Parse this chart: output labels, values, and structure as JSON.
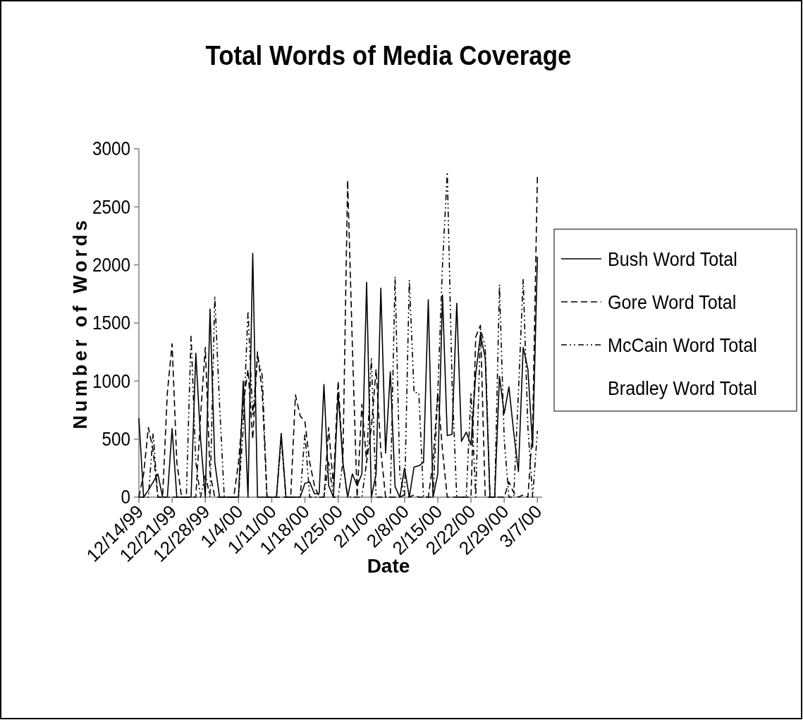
{
  "chart_data": {
    "type": "line",
    "title": "Total Words of Media Coverage",
    "xlabel": "Date",
    "ylabel": "Number of Words",
    "x": [
      "1999-12-14",
      "1999-12-15",
      "1999-12-16",
      "1999-12-17",
      "1999-12-18",
      "1999-12-19",
      "1999-12-20",
      "1999-12-21",
      "1999-12-22",
      "1999-12-23",
      "1999-12-24",
      "1999-12-25",
      "1999-12-26",
      "1999-12-27",
      "1999-12-28",
      "1999-12-29",
      "1999-12-30",
      "1999-12-31",
      "2000-01-01",
      "2000-01-02",
      "2000-01-03",
      "2000-01-04",
      "2000-01-05",
      "2000-01-06",
      "2000-01-07",
      "2000-01-08",
      "2000-01-09",
      "2000-01-10",
      "2000-01-11",
      "2000-01-12",
      "2000-01-13",
      "2000-01-14",
      "2000-01-15",
      "2000-01-16",
      "2000-01-17",
      "2000-01-18",
      "2000-01-19",
      "2000-01-20",
      "2000-01-21",
      "2000-01-22",
      "2000-01-23",
      "2000-01-24",
      "2000-01-25",
      "2000-01-26",
      "2000-01-27",
      "2000-01-28",
      "2000-01-29",
      "2000-01-30",
      "2000-01-31",
      "2000-02-01",
      "2000-02-02",
      "2000-02-03",
      "2000-02-04",
      "2000-02-05",
      "2000-02-06",
      "2000-02-07",
      "2000-02-08",
      "2000-02-09",
      "2000-02-10",
      "2000-02-11",
      "2000-02-12",
      "2000-02-13",
      "2000-02-14",
      "2000-02-15",
      "2000-02-16",
      "2000-02-17",
      "2000-02-18",
      "2000-02-19",
      "2000-02-20",
      "2000-02-21",
      "2000-02-22",
      "2000-02-23",
      "2000-02-24",
      "2000-02-25",
      "2000-02-26",
      "2000-02-27",
      "2000-02-28",
      "2000-02-29",
      "2000-03-01",
      "2000-03-02",
      "2000-03-03",
      "2000-03-04",
      "2000-03-05",
      "2000-03-06",
      "2000-03-07"
    ],
    "xlim": [
      "1999-12-14",
      "2000-03-08"
    ],
    "xticks": [
      {
        "value": "1999-12-14",
        "label": "12/14/99"
      },
      {
        "value": "1999-12-21",
        "label": "12/21/99"
      },
      {
        "value": "1999-12-28",
        "label": "12/28/99"
      },
      {
        "value": "2000-01-04",
        "label": "1/4/00"
      },
      {
        "value": "2000-01-11",
        "label": "1/11/00"
      },
      {
        "value": "2000-01-18",
        "label": "1/18/00"
      },
      {
        "value": "2000-01-25",
        "label": "1/25/00"
      },
      {
        "value": "2000-02-01",
        "label": "2/1/00"
      },
      {
        "value": "2000-02-08",
        "label": "2/8/00"
      },
      {
        "value": "2000-02-15",
        "label": "2/15/00"
      },
      {
        "value": "2000-02-22",
        "label": "2/22/00"
      },
      {
        "value": "2000-02-29",
        "label": "2/29/00"
      },
      {
        "value": "2000-03-07",
        "label": "3/7/00"
      }
    ],
    "ylim": [
      0,
      3000
    ],
    "yticks": [
      0,
      500,
      1000,
      1500,
      2000,
      2500,
      3000
    ],
    "legend": "right",
    "grid": false,
    "marker": "none",
    "series": [
      {
        "name": "Bush Word Total",
        "color": "#000000",
        "line_style": "solid",
        "values": [
          680,
          0,
          60,
          130,
          200,
          0,
          0,
          590,
          0,
          0,
          0,
          0,
          1240,
          500,
          0,
          1620,
          300,
          0,
          0,
          0,
          0,
          0,
          1000,
          0,
          2100,
          0,
          0,
          0,
          0,
          0,
          550,
          0,
          0,
          0,
          0,
          120,
          130,
          30,
          30,
          970,
          100,
          0,
          900,
          300,
          0,
          200,
          100,
          200,
          1850,
          0,
          200,
          1800,
          380,
          1080,
          90,
          0,
          250,
          0,
          260,
          270,
          300,
          1700,
          0,
          200,
          1740,
          530,
          540,
          1670,
          480,
          560,
          450,
          1060,
          1400,
          1200,
          0,
          0,
          1040,
          720,
          950,
          560,
          220,
          1290,
          1100,
          430,
          2070
        ]
      },
      {
        "name": "Gore Word Total",
        "color": "#000000",
        "line_style": "dashed",
        "values": [
          0,
          200,
          600,
          400,
          0,
          0,
          900,
          1320,
          300,
          0,
          0,
          0,
          0,
          700,
          1290,
          200,
          0,
          0,
          0,
          0,
          0,
          300,
          800,
          1100,
          500,
          1250,
          900,
          0,
          0,
          0,
          0,
          0,
          0,
          880,
          700,
          650,
          300,
          100,
          0,
          0,
          600,
          100,
          1000,
          300,
          2730,
          1300,
          0,
          800,
          300,
          600,
          1100,
          400,
          0,
          0,
          0,
          0,
          20,
          0,
          20,
          0,
          0,
          0,
          300,
          900,
          400,
          0,
          0,
          0,
          0,
          0,
          0,
          1380,
          1480,
          0,
          0,
          0,
          0,
          0,
          130,
          40,
          0,
          20,
          0,
          600,
          2770
        ]
      },
      {
        "name": "McCain Word Total",
        "color": "#000000",
        "line_style": "dotted",
        "values": [
          0,
          0,
          0,
          550,
          0,
          0,
          0,
          0,
          0,
          0,
          0,
          1400,
          300,
          0,
          200,
          0,
          1730,
          800,
          0,
          0,
          0,
          0,
          600,
          1600,
          700,
          1200,
          1050,
          0,
          0,
          0,
          500,
          0,
          0,
          0,
          0,
          550,
          0,
          0,
          0,
          0,
          300,
          0,
          0,
          300,
          0,
          0,
          0,
          0,
          300,
          1200,
          0,
          0,
          0,
          0,
          1900,
          200,
          0,
          1870,
          900,
          900,
          0,
          0,
          0,
          900,
          2000,
          2800,
          1000,
          0,
          0,
          0,
          900,
          0,
          1450,
          1300,
          0,
          0,
          1830,
          500,
          0,
          0,
          900,
          1880,
          600,
          0,
          570
        ]
      },
      {
        "name": "Bradley Word Total",
        "values": [
          null,
          null,
          null,
          null,
          null,
          null,
          null,
          null,
          null,
          null,
          null,
          null,
          null,
          null,
          null,
          null,
          null,
          null,
          null,
          null,
          null,
          null,
          null,
          null,
          null,
          null,
          null,
          null,
          null,
          null,
          null,
          null,
          null,
          null,
          null,
          null,
          null,
          null,
          null,
          null,
          null,
          null,
          null,
          null,
          null,
          null,
          null,
          null,
          null,
          null,
          null,
          null,
          null,
          null,
          null,
          null,
          null,
          null,
          null,
          null,
          null,
          null,
          null,
          null,
          null,
          null,
          null,
          null,
          null,
          null,
          null,
          null,
          null,
          null,
          null,
          null,
          null,
          null,
          null,
          null,
          null,
          null,
          null,
          null,
          null
        ]
      }
    ]
  }
}
